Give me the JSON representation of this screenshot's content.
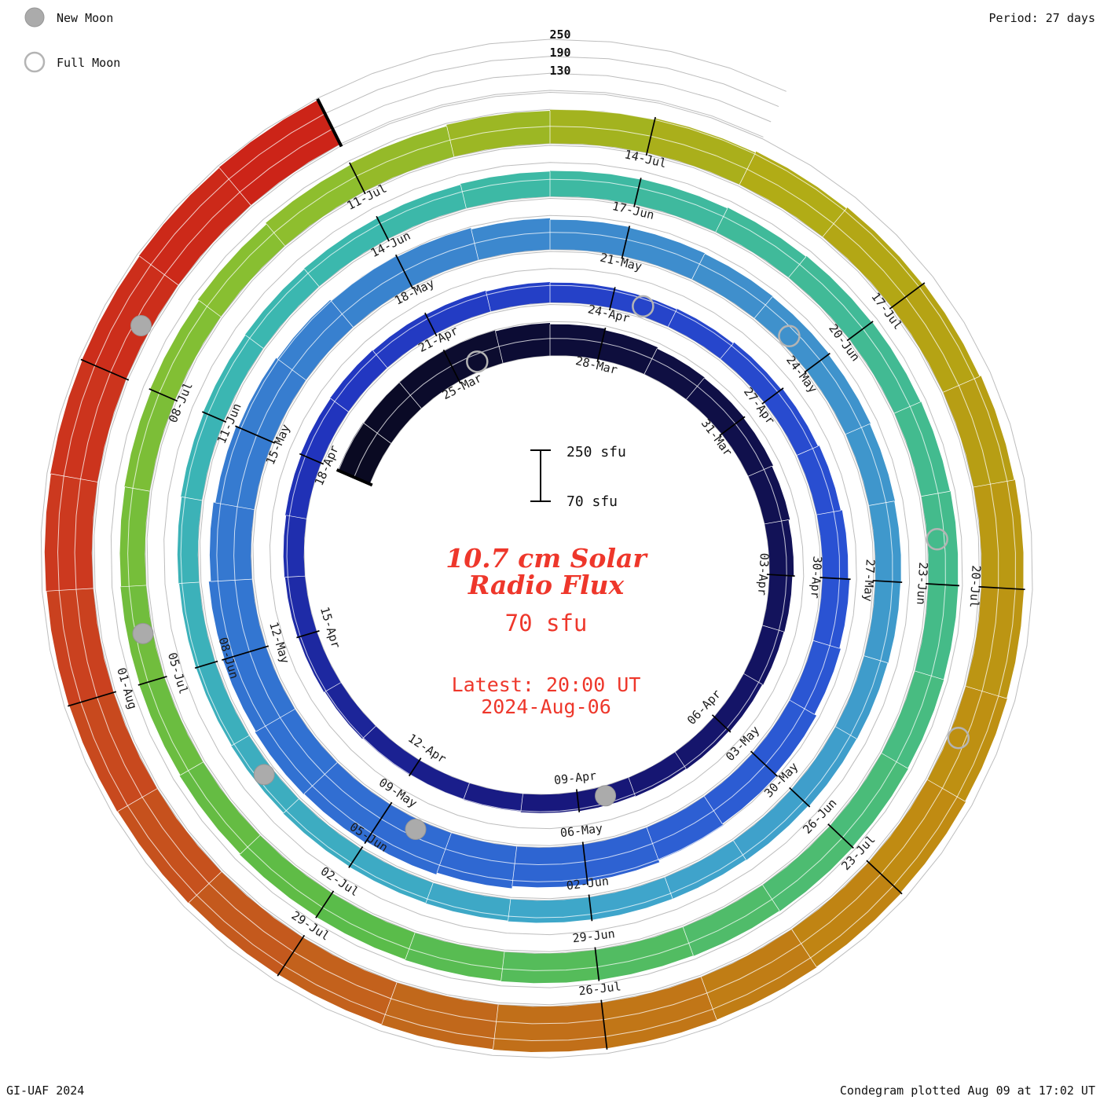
{
  "header": {
    "period_label": "Period: 27 days",
    "radial_scale_labels": [
      "250",
      "190",
      "130"
    ]
  },
  "legend": {
    "new_moon_label": "New Moon",
    "full_moon_label": "Full Moon"
  },
  "center": {
    "title_line1": "10.7 cm Solar",
    "title_line2": "Radio Flux",
    "baseline_label": "70 sfu",
    "latest_line1": "Latest: 20:00 UT",
    "latest_line2": "2024-Aug-06",
    "scalebar_top": "250 sfu",
    "scalebar_bottom": "70 sfu"
  },
  "footer": {
    "left": "GI-UAF 2024",
    "right": "Condegram plotted Aug 09 at 17:02 UT"
  },
  "colors": {
    "annotation_red": "#ee372b",
    "grid_gray": "#bdbdbd",
    "moon_gray": "#ababab"
  },
  "chart_data": {
    "type": "spiral-bar (condegram)",
    "title": "10.7 cm Solar Radio Flux",
    "units": "sfu",
    "start_date": "2024-03-22",
    "end_date": "2024-08-06",
    "latest": "2024-Aug-06 20:00 UT",
    "days_per_revolution": 27,
    "sfu_baseline": 70,
    "sfu_max": 250,
    "ylim": [
      70,
      250
    ],
    "gridlines_sfu": [
      70,
      130,
      190,
      250
    ],
    "values": [
      192,
      190,
      189,
      188,
      185,
      180,
      175,
      170,
      168,
      165,
      160,
      155,
      150,
      148,
      145,
      142,
      140,
      138,
      135,
      132,
      130,
      132,
      135,
      138,
      140,
      142,
      145,
      148,
      150,
      148,
      145,
      142,
      140,
      138,
      140,
      145,
      150,
      155,
      160,
      165,
      170,
      178,
      185,
      192,
      200,
      210,
      218,
      225,
      230,
      232,
      228,
      222,
      215,
      208,
      200,
      195,
      190,
      185,
      180,
      175,
      172,
      170,
      168,
      165,
      162,
      160,
      158,
      156,
      155,
      152,
      150,
      150,
      148,
      146,
      145,
      144,
      142,
      140,
      140,
      142,
      145,
      148,
      150,
      152,
      155,
      158,
      160,
      162,
      165,
      168,
      170,
      172,
      174,
      175,
      176,
      178,
      180,
      178,
      176,
      174,
      172,
      170,
      168,
      165,
      162,
      160,
      158,
      160,
      165,
      170,
      175,
      180,
      185,
      190,
      195,
      200,
      205,
      210,
      215,
      218,
      220,
      222,
      225,
      228,
      230,
      232,
      230,
      228,
      226,
      228,
      230,
      232,
      234,
      236,
      238,
      240,
      242,
      244
    ],
    "tick_labels": [
      [
        3,
        "25-Mar"
      ],
      [
        6,
        "28-Mar"
      ],
      [
        9,
        "31-Mar"
      ],
      [
        12,
        "03-Apr"
      ],
      [
        15,
        "06-Apr"
      ],
      [
        18,
        "09-Apr"
      ],
      [
        21,
        "12-Apr"
      ],
      [
        24,
        "15-Apr"
      ],
      [
        27,
        "18-Apr"
      ],
      [
        30,
        "21-Apr"
      ],
      [
        33,
        "24-Apr"
      ],
      [
        36,
        "27-Apr"
      ],
      [
        39,
        "30-Apr"
      ],
      [
        42,
        "03-May"
      ],
      [
        45,
        "06-May"
      ],
      [
        48,
        "09-May"
      ],
      [
        51,
        "12-May"
      ],
      [
        54,
        "15-May"
      ],
      [
        57,
        "18-May"
      ],
      [
        60,
        "21-May"
      ],
      [
        63,
        "24-May"
      ],
      [
        66,
        "27-May"
      ],
      [
        69,
        "30-May"
      ],
      [
        72,
        "02-Jun"
      ],
      [
        75,
        "05-Jun"
      ],
      [
        78,
        "08-Jun"
      ],
      [
        81,
        "11-Jun"
      ],
      [
        84,
        "14-Jun"
      ],
      [
        87,
        "17-Jun"
      ],
      [
        90,
        "20-Jun"
      ],
      [
        93,
        "23-Jun"
      ],
      [
        96,
        "26-Jun"
      ],
      [
        99,
        "29-Jun"
      ],
      [
        102,
        "02-Jul"
      ],
      [
        105,
        "05-Jul"
      ],
      [
        108,
        "08-Jul"
      ],
      [
        111,
        "11-Jul"
      ],
      [
        114,
        "14-Jul"
      ],
      [
        117,
        "17-Jul"
      ],
      [
        120,
        "20-Jul"
      ],
      [
        123,
        "23-Jul"
      ],
      [
        126,
        "26-Jul"
      ],
      [
        129,
        "29-Jul"
      ],
      [
        132,
        "01-Aug"
      ]
    ],
    "moons": [
      [
        3,
        "full"
      ],
      [
        17,
        "new"
      ],
      [
        33,
        "full"
      ],
      [
        47,
        "new"
      ],
      [
        62,
        "full"
      ],
      [
        76,
        "new"
      ],
      [
        92,
        "full"
      ],
      [
        105,
        "new"
      ],
      [
        121,
        "full"
      ],
      [
        135,
        "new"
      ]
    ],
    "color_scale": [
      [
        0.0,
        "#0a0a22"
      ],
      [
        0.06,
        "#101048"
      ],
      [
        0.13,
        "#18187c"
      ],
      [
        0.2,
        "#2236c0"
      ],
      [
        0.28,
        "#2a52d4"
      ],
      [
        0.36,
        "#3272d2"
      ],
      [
        0.44,
        "#3f8ecd"
      ],
      [
        0.52,
        "#3fa6cb"
      ],
      [
        0.6,
        "#3bb8b0"
      ],
      [
        0.68,
        "#46bc88"
      ],
      [
        0.74,
        "#5cbc48"
      ],
      [
        0.8,
        "#8cc030"
      ],
      [
        0.84,
        "#b2ac16"
      ],
      [
        0.89,
        "#c08c12"
      ],
      [
        0.93,
        "#c2661c"
      ],
      [
        0.97,
        "#cc3a20"
      ],
      [
        1.0,
        "#cc2418"
      ]
    ]
  }
}
